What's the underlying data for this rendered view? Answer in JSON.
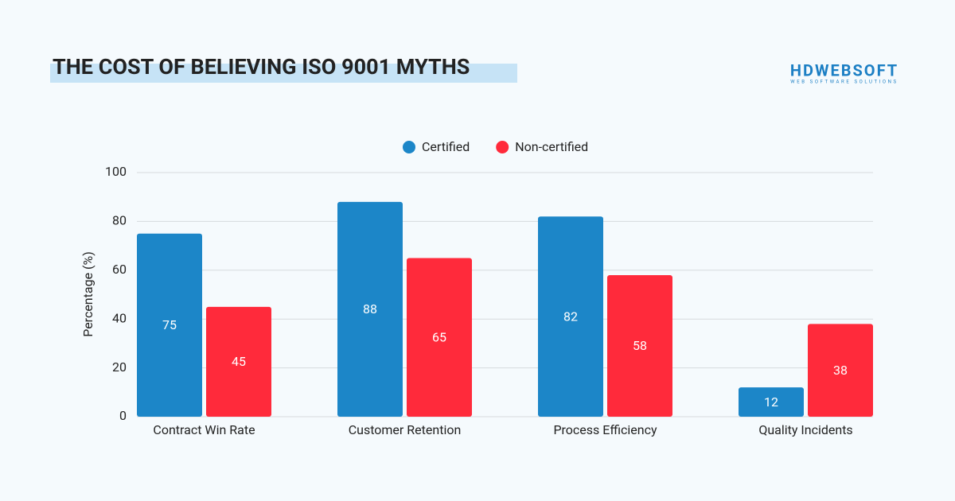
{
  "chart_data": {
    "type": "bar",
    "title": "THE COST OF BELIEVING ISO 9001 MYTHS",
    "y_label": "Percentage (%)",
    "categories": [
      "Contract Win Rate",
      "Customer Retention",
      "Process Efficiency",
      "Quality Incidents"
    ],
    "series": [
      {
        "name": "Certified",
        "color": "#1c86c8",
        "values": [
          75,
          88,
          82,
          12
        ]
      },
      {
        "name": "Non-certified",
        "color": "#ff2a3b",
        "values": [
          45,
          65,
          58,
          38
        ]
      }
    ],
    "ylim": [
      0,
      100
    ],
    "yticks": [
      0,
      20,
      40,
      60,
      80,
      100
    ],
    "grid": true,
    "legend": "top"
  },
  "logo": {
    "name": "HDWEBSOFT",
    "tagline": "WEB SOFTWARE SOLUTIONS"
  }
}
